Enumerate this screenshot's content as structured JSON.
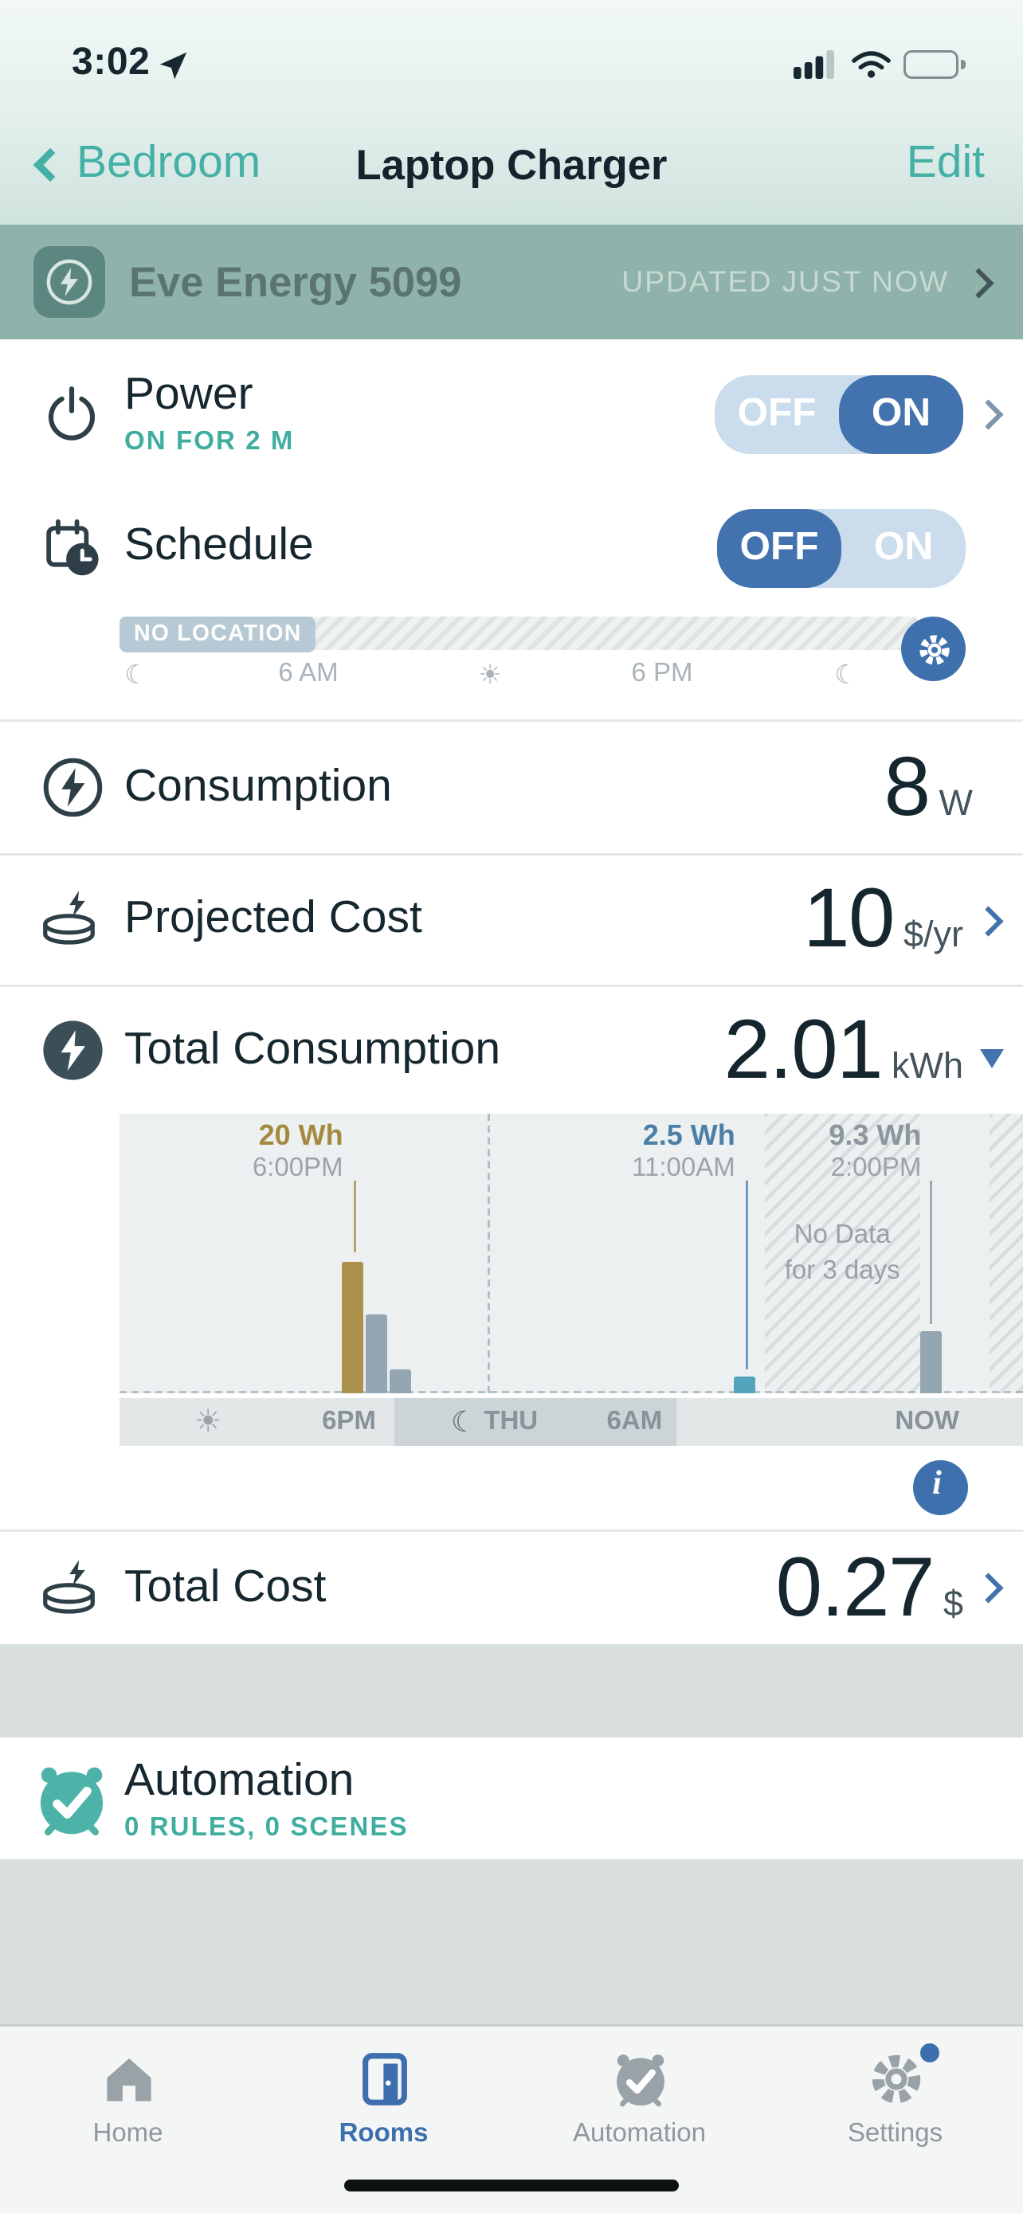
{
  "status_bar": {
    "time": "3:02"
  },
  "nav": {
    "back_label": "Bedroom",
    "title": "Laptop Charger",
    "edit_label": "Edit"
  },
  "device_header": {
    "name": "Eve Energy 5099",
    "updated": "UPDATED JUST NOW"
  },
  "icons": {
    "moon": "☾",
    "sun": "☀"
  },
  "colors": {
    "teal_accent": "#45b0a6",
    "band": "#8fb2aa",
    "toggle_blue": "#4273ae",
    "toggle_light": "#cbdcec",
    "bar_tan": "#ab914c",
    "bar_slate": "#93a6b1",
    "bar_teal": "#54a4bd"
  },
  "rows": {
    "power": {
      "label": "Power",
      "status": "ON FOR 2 M",
      "toggle_off": "OFF",
      "toggle_on": "ON",
      "active": "on"
    },
    "schedule": {
      "label": "Schedule",
      "toggle_off": "OFF",
      "toggle_on": "ON",
      "active": "off",
      "no_location": "NO LOCATION",
      "tick_6am": "6 AM",
      "tick_6pm": "6 PM"
    },
    "consumption": {
      "label": "Consumption",
      "value": "8",
      "unit": "W"
    },
    "projected_cost": {
      "label": "Projected Cost",
      "value": "10",
      "unit": "$/yr"
    },
    "total_consumption": {
      "label": "Total Consumption",
      "value": "2.01",
      "unit": "kWh"
    },
    "total_cost": {
      "label": "Total Cost",
      "value": "0.27",
      "unit": "$"
    }
  },
  "chart_data": {
    "type": "bar",
    "title": "Total Consumption history",
    "unit": "Wh",
    "ylim_wh": [
      0,
      50
    ],
    "bars": [
      {
        "time": "6:00PM",
        "wh": 20,
        "x_pct": 24.6,
        "color": "#ab914c",
        "labeled": true
      },
      {
        "time": "7:00PM",
        "wh": 12,
        "x_pct": 27.3,
        "color": "#93a6b1",
        "labeled": false,
        "estimated": true
      },
      {
        "time": "8:00PM",
        "wh": 3.5,
        "x_pct": 30.0,
        "color": "#93a6b1",
        "labeled": false,
        "estimated": true
      },
      {
        "time": "11:00AM",
        "wh": 2.5,
        "x_pct": 68.0,
        "color": "#54a4bd",
        "labeled": true
      },
      {
        "time": "2:00PM",
        "wh": 9.3,
        "x_pct": 88.6,
        "color": "#93a6b1",
        "labeled": true
      }
    ],
    "annotations": [
      {
        "value_label": "20 Wh",
        "wh": 20,
        "time": "6:00PM",
        "x_pct": 25.8,
        "color": "#a5893f"
      },
      {
        "value_label": "2.5 Wh",
        "wh": 2.5,
        "time": "11:00AM",
        "x_pct": 69.2,
        "color": "#4c7fa8"
      },
      {
        "value_label": "9.3 Wh",
        "wh": 9.3,
        "time": "2:00PM",
        "x_pct": 89.8,
        "color": "#8b969e"
      }
    ],
    "no_data_label": [
      "No Data",
      "for 3 days"
    ],
    "no_data_regions": [
      [
        71.5,
        88.5
      ],
      [
        96.2,
        100
      ]
    ],
    "day_separator_x_pct": 40.7,
    "axis": {
      "night_band_pct": [
        30.4,
        61.6
      ],
      "ticks": [
        {
          "type": "sun",
          "x_pct": 9.8
        },
        {
          "type": "text",
          "label": "6PM",
          "x_pct": 25.4
        },
        {
          "type": "moon-text",
          "label": "THU",
          "x_pct": 41.5
        },
        {
          "type": "text",
          "label": "6AM",
          "x_pct": 57.0
        },
        {
          "type": "text",
          "label": "NOW",
          "x_pct": 89.4
        }
      ]
    }
  },
  "automation": {
    "label": "Automation",
    "sub": "0 RULES, 0 SCENES"
  },
  "tab_bar": {
    "active": "Rooms",
    "items": [
      {
        "label": "Home"
      },
      {
        "label": "Rooms"
      },
      {
        "label": "Automation"
      },
      {
        "label": "Settings"
      }
    ]
  }
}
